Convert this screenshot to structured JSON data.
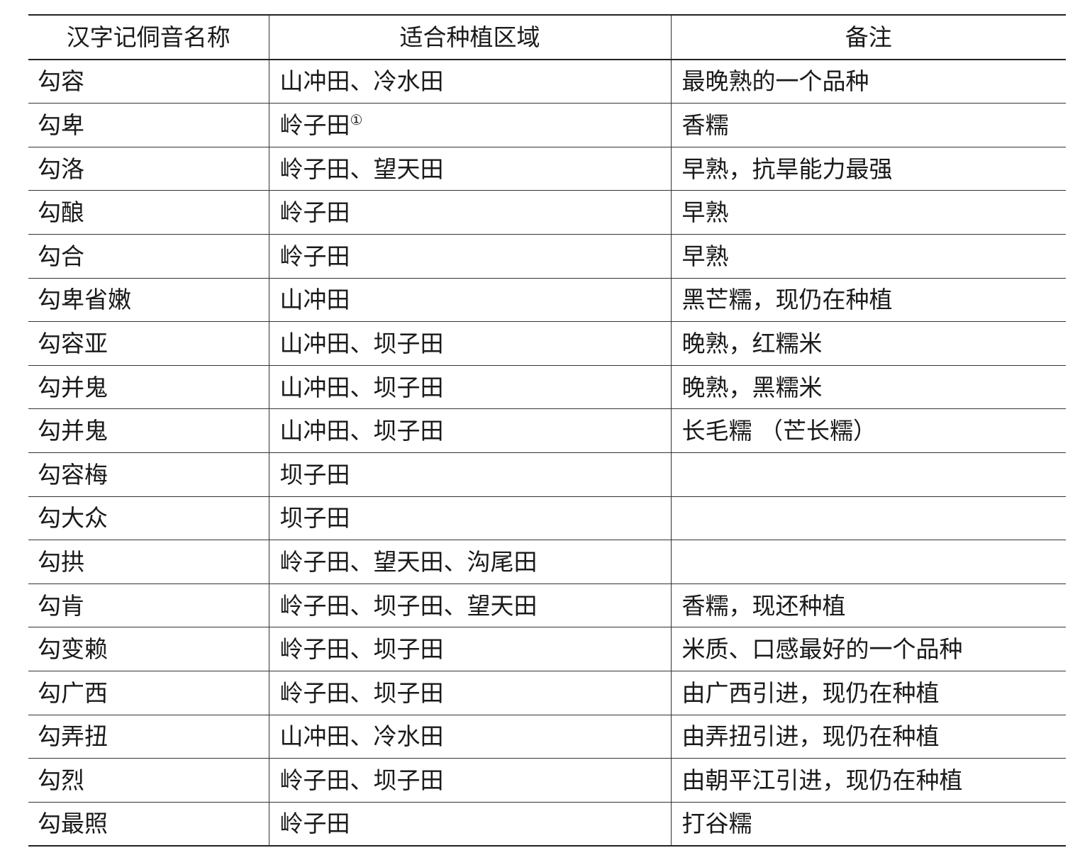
{
  "headers": [
    "汉字记侗音名称",
    "适合种植区域",
    "备注"
  ],
  "rows": [
    {
      "name": "勾容",
      "region": "山冲田、冷水田",
      "note": "最晚熟的一个品种"
    },
    {
      "name": "勾卑",
      "region": "岭子田",
      "region_footnote": "①",
      "note": "香糯"
    },
    {
      "name": "勾洛",
      "region": "岭子田、望天田",
      "note": "早熟，抗旱能力最强"
    },
    {
      "name": "勾酿",
      "region": "岭子田",
      "note": "早熟"
    },
    {
      "name": "勾合",
      "region": "岭子田",
      "note": "早熟"
    },
    {
      "name": "勾卑省嫩",
      "region": "山冲田",
      "note": "黑芒糯，现仍在种植"
    },
    {
      "name": "勾容亚",
      "region": "山冲田、坝子田",
      "note": "晚熟，红糯米"
    },
    {
      "name": "勾并鬼",
      "region": "山冲田、坝子田",
      "note": "晚熟，黑糯米"
    },
    {
      "name": "勾并鬼",
      "region": "山冲田、坝子田",
      "note": "长毛糯 （芒长糯）"
    },
    {
      "name": "勾容梅",
      "region": "坝子田",
      "note": ""
    },
    {
      "name": "勾大众",
      "region": "坝子田",
      "note": ""
    },
    {
      "name": "勾拱",
      "region": "岭子田、望天田、沟尾田",
      "note": ""
    },
    {
      "name": "勾肯",
      "region": "岭子田、坝子田、望天田",
      "note": "香糯，现还种植"
    },
    {
      "name": "勾变赖",
      "region": "岭子田、坝子田",
      "note": "米质、口感最好的一个品种"
    },
    {
      "name": "勾广西",
      "region": "岭子田、坝子田",
      "note": "由广西引进，现仍在种植"
    },
    {
      "name": "勾弄扭",
      "region": "山冲田、冷水田",
      "note": "由弄扭引进，现仍在种植"
    },
    {
      "name": "勾烈",
      "region": "岭子田、坝子田",
      "note": "由朝平江引进，现仍在种植"
    },
    {
      "name": "勾最照",
      "region": "岭子田",
      "note": "打谷糯"
    }
  ]
}
